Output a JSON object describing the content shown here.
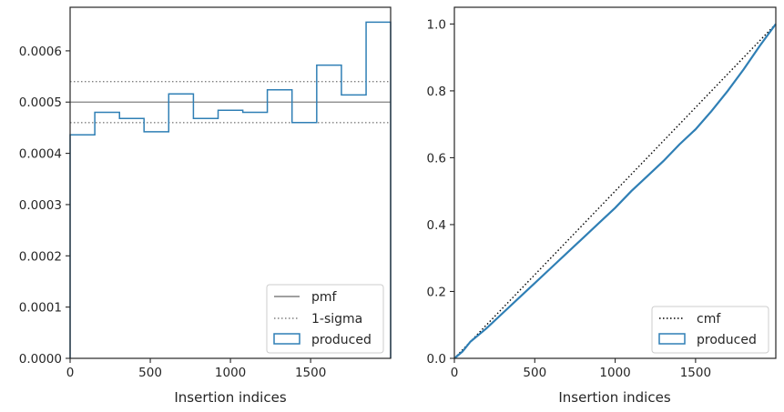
{
  "chart_data": [
    {
      "type": "line",
      "subtype": "step-histogram",
      "xlabel": "Insertion indices",
      "ylabel": "",
      "xlim": [
        0,
        1999
      ],
      "ylim": [
        0,
        0.000685
      ],
      "xticks": [
        0,
        500,
        1000,
        1500
      ],
      "xtick_labels": [
        "0",
        "500",
        "1000",
        "1500"
      ],
      "yticks": [
        0,
        0.0001,
        0.0002,
        0.0003,
        0.0004,
        0.0005,
        0.0006
      ],
      "ytick_labels": [
        "0.0000",
        "0.0001",
        "0.0002",
        "0.0003",
        "0.0004",
        "0.0005",
        "0.0006"
      ],
      "grid": false,
      "legend_position": "lower-right",
      "bin_edges": [
        0,
        154,
        308,
        461,
        615,
        769,
        923,
        1077,
        1230,
        1384,
        1538,
        1692,
        1846,
        1999
      ],
      "series": [
        {
          "name": "pmf",
          "style": "solid",
          "color": "#808080",
          "y": 0.0005
        },
        {
          "name": "1-sigma",
          "style": "dotted",
          "color": "#808080",
          "y": [
            0.00046,
            0.00054
          ]
        },
        {
          "name": "produced",
          "style": "step",
          "color": "#2f7fb5",
          "values": [
            0.000436,
            0.00048,
            0.000468,
            0.000442,
            0.000516,
            0.000468,
            0.000484,
            0.00048,
            0.000524,
            0.00046,
            0.000572,
            0.000514,
            0.000656
          ]
        }
      ]
    },
    {
      "type": "line",
      "xlabel": "Insertion indices",
      "ylabel": "",
      "xlim": [
        0,
        1999
      ],
      "ylim": [
        0,
        1.05
      ],
      "xticks": [
        0,
        500,
        1000,
        1500
      ],
      "xtick_labels": [
        "0",
        "500",
        "1000",
        "1500"
      ],
      "yticks": [
        0,
        0.2,
        0.4,
        0.6,
        0.8,
        1.0
      ],
      "ytick_labels": [
        "0.0",
        "0.2",
        "0.4",
        "0.6",
        "0.8",
        "1.0"
      ],
      "grid": false,
      "legend_position": "lower-right",
      "series": [
        {
          "name": "cmf",
          "style": "dotted",
          "color": "#000000",
          "x": [
            0,
            1999
          ],
          "y": [
            0,
            1.0
          ]
        },
        {
          "name": "produced",
          "style": "solid",
          "color": "#2f7fb5",
          "x": [
            0,
            50,
            100,
            200,
            300,
            400,
            500,
            600,
            700,
            800,
            900,
            1000,
            1100,
            1200,
            1300,
            1400,
            1500,
            1600,
            1700,
            1800,
            1900,
            1999
          ],
          "y": [
            0,
            0.02,
            0.05,
            0.09,
            0.135,
            0.18,
            0.225,
            0.27,
            0.315,
            0.36,
            0.405,
            0.45,
            0.5,
            0.545,
            0.59,
            0.64,
            0.685,
            0.74,
            0.8,
            0.865,
            0.935,
            1.0
          ]
        }
      ]
    }
  ]
}
